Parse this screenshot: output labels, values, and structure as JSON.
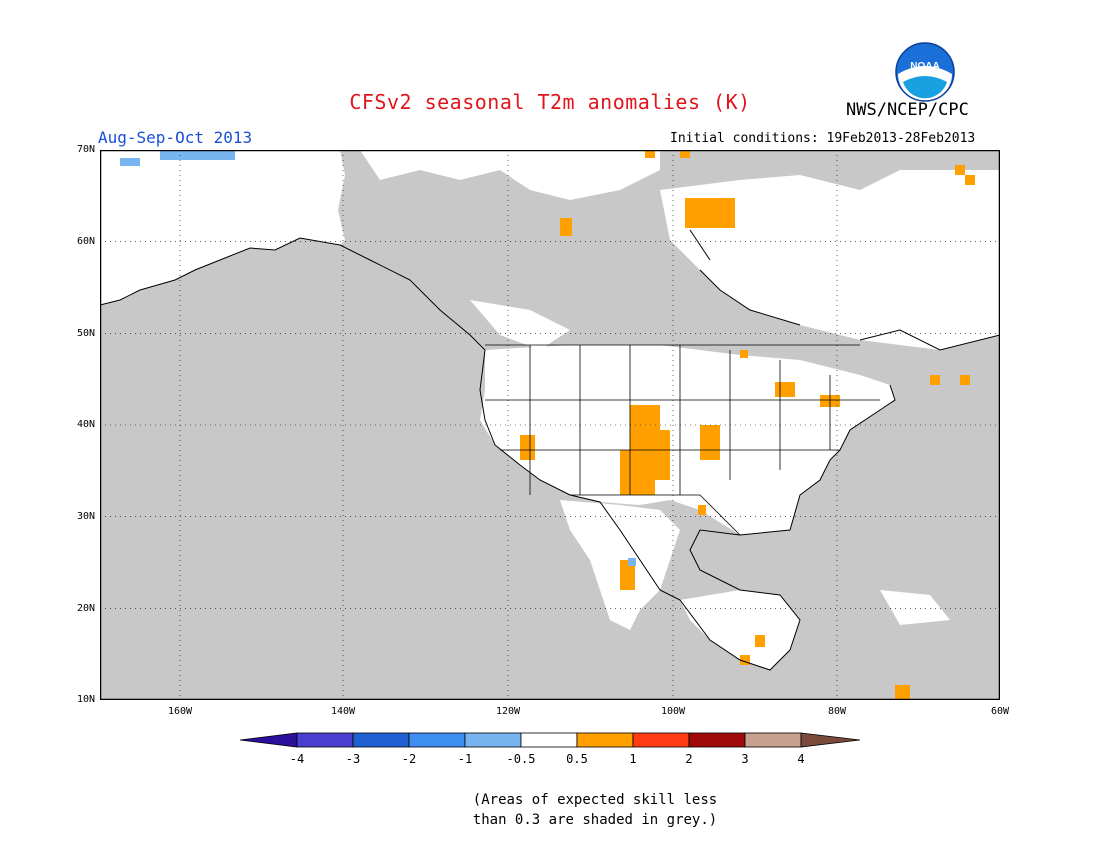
{
  "header": {
    "title": "CFSv2 seasonal T2m anomalies (K)",
    "agency": "NWS/NCEP/CPC",
    "logo_text": "NOAA",
    "season": "Aug-Sep-Oct 2013",
    "initial_conditions": "Initial conditions: 19Feb2013-28Feb2013"
  },
  "map": {
    "lat_labels": [
      "70N",
      "60N",
      "50N",
      "40N",
      "30N",
      "20N",
      "10N"
    ],
    "lon_labels": [
      "160W",
      "140W",
      "120W",
      "100W",
      "80W",
      "60W"
    ],
    "colors": {
      "skill_grey": "#c8c8c8",
      "land_border": "#000000",
      "warm_0_5_1": "#ffa000",
      "cool_m1_m0_5": "#78b4f0"
    }
  },
  "colorbar": {
    "labels": [
      "-4",
      "-3",
      "-2",
      "-1",
      "-0.5",
      "0.5",
      "1",
      "2",
      "3",
      "4"
    ],
    "colors": [
      "#2a0f9c",
      "#4a3fd0",
      "#2060d0",
      "#3e8ef0",
      "#78b4f0",
      "#ffffff",
      "#ffa000",
      "#ff3c14",
      "#a00a0a",
      "#c8a090",
      "#7a4a3a"
    ]
  },
  "note": {
    "line1": "(Areas of expected skill less",
    "line2": "than 0.3 are shaded in grey.)"
  }
}
